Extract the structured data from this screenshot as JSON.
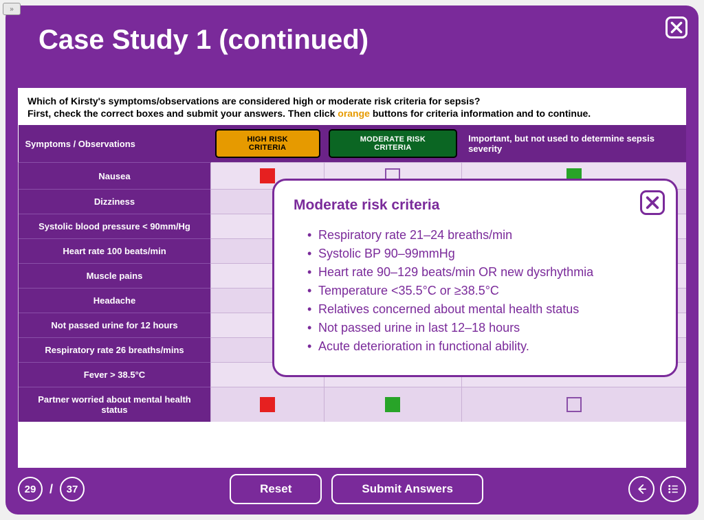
{
  "colors": {
    "primary": "#7A2A9A",
    "header_purple": "#6B2388",
    "row_light": "#E6D5ED",
    "row_alt": "#EDE0F2",
    "orange": "#E69A00",
    "green": "#0B6623",
    "red_box": "#E62020",
    "green_box": "#28A428"
  },
  "title": "Case Study 1 (continued)",
  "question": {
    "line1": "Which of Kirsty's symptoms/observations are considered high or moderate risk criteria for sepsis?",
    "line2_a": "First, check the correct boxes and submit your answers. Then click ",
    "line2_orange": "orange",
    "line2_b": " buttons for criteria information and to continue."
  },
  "headers": {
    "col1": "Symptoms / Observations",
    "high": "HIGH RISK CRITERIA",
    "moderate": "MODERATE RISK CRITERIA",
    "col4": "Important, but not used to determine sepsis severity"
  },
  "rows": [
    {
      "label": "Nausea",
      "states": [
        "red",
        "empty",
        "green"
      ]
    },
    {
      "label": "Dizziness",
      "states": [
        "",
        "",
        ""
      ]
    },
    {
      "label": "Systolic blood pressure < 90mm/Hg",
      "states": [
        "",
        "",
        ""
      ]
    },
    {
      "label": "Heart rate 100 beats/min",
      "states": [
        "",
        "",
        ""
      ]
    },
    {
      "label": "Muscle pains",
      "states": [
        "",
        "",
        ""
      ]
    },
    {
      "label": "Headache",
      "states": [
        "",
        "",
        ""
      ]
    },
    {
      "label": "Not passed urine for 12 hours",
      "states": [
        "",
        "",
        ""
      ]
    },
    {
      "label": "Respiratory rate 26 breaths/mins",
      "states": [
        "",
        "",
        ""
      ]
    },
    {
      "label": "Fever > 38.5°C",
      "states": [
        "",
        "",
        ""
      ]
    },
    {
      "label": "Partner worried about mental health status",
      "states": [
        "red",
        "green",
        "empty"
      ]
    }
  ],
  "popup": {
    "title": "Moderate risk criteria",
    "items": [
      "Respiratory rate 21–24 breaths/min",
      "Systolic BP 90–99mmHg",
      "Heart rate 90–129 beats/min OR new dysrhythmia",
      "Temperature <35.5°C or ≥38.5°C",
      "Relatives concerned about mental health status",
      "Not passed urine in last 12–18 hours",
      "Acute deterioration in functional ability."
    ]
  },
  "footer": {
    "current": "29",
    "total": "37",
    "reset": "Reset",
    "submit": "Submit Answers"
  }
}
